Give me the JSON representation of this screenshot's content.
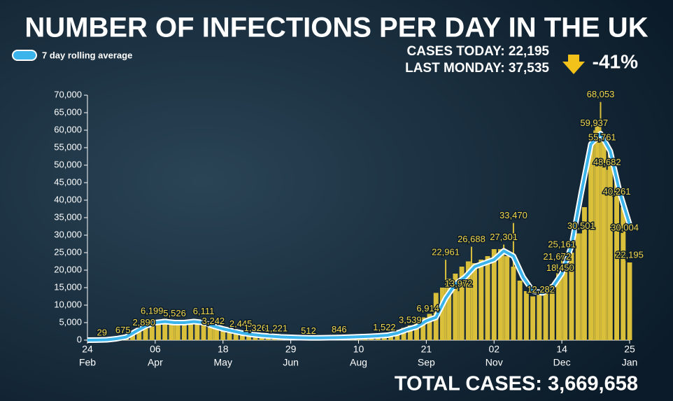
{
  "chart_data": {
    "type": "bar-line",
    "title": "NUMBER OF INFECTIONS PER DAY IN THE UK",
    "cases_today": "CASES TODAY: 22,195",
    "last_monday": "LAST MONDAY: 37,535",
    "change": "-41%",
    "total_cases": "TOTAL CASES: 3,669,658",
    "xlim": [
      0,
      336
    ],
    "xticks": [
      {
        "value": 0,
        "label": "24"
      },
      {
        "value": 42,
        "label": "06"
      },
      {
        "value": 84,
        "label": "18"
      },
      {
        "value": 126,
        "label": "29"
      },
      {
        "value": 168,
        "label": "10"
      },
      {
        "value": 210,
        "label": "21"
      },
      {
        "value": 252,
        "label": "02"
      },
      {
        "value": 294,
        "label": "14"
      },
      {
        "value": 336,
        "label": "25"
      }
    ],
    "xtick_months": [
      "Feb",
      "Apr",
      "May",
      "Jun",
      "Aug",
      "Sep",
      "Nov",
      "Dec",
      "Jan"
    ],
    "ylim": [
      0,
      70000
    ],
    "yticks": [
      0,
      {
        "value": 5000,
        "label": "5,000"
      },
      {
        "value": 10000,
        "label": "10,000"
      },
      {
        "value": 15000,
        "label": "15,000"
      },
      {
        "value": 20000,
        "label": "20,000"
      },
      {
        "value": 25000,
        "label": "25,000"
      },
      {
        "value": 30000,
        "label": "30,000"
      },
      {
        "value": 35000,
        "label": "35,000"
      },
      {
        "value": 40000,
        "label": "40,000"
      },
      {
        "value": 45000,
        "label": "45,000"
      },
      {
        "value": 50000,
        "label": "50,000"
      },
      {
        "value": 55000,
        "label": "55,000"
      },
      {
        "value": 60000,
        "label": "60,000"
      },
      {
        "value": 65000,
        "label": "65,000"
      },
      {
        "value": 70000,
        "label": "70,000"
      }
    ],
    "bars": {
      "color": "#d9bf3a",
      "x": [
        0,
        4,
        8,
        12,
        16,
        20,
        24,
        28,
        32,
        36,
        40,
        44,
        48,
        52,
        56,
        60,
        64,
        68,
        72,
        76,
        80,
        84,
        88,
        92,
        96,
        100,
        104,
        108,
        112,
        116,
        120,
        124,
        128,
        132,
        136,
        140,
        144,
        148,
        152,
        156,
        160,
        164,
        168,
        172,
        176,
        180,
        184,
        188,
        192,
        196,
        200,
        204,
        208,
        212,
        216,
        220,
        224,
        228,
        232,
        236,
        240,
        244,
        248,
        252,
        256,
        260,
        264,
        268,
        272,
        276,
        280,
        284,
        288,
        292,
        296,
        300,
        304,
        308,
        312,
        316,
        320,
        324,
        328,
        332,
        336
      ],
      "values": [
        0,
        10,
        30,
        90,
        250,
        600,
        900,
        2000,
        2900,
        4300,
        5200,
        4800,
        6100,
        5500,
        4900,
        5300,
        4800,
        5600,
        5100,
        4300,
        3300,
        3200,
        2700,
        2600,
        2100,
        1700,
        1400,
        1300,
        1200,
        1100,
        900,
        800,
        700,
        550,
        650,
        600,
        700,
        650,
        760,
        800,
        850,
        900,
        1000,
        1100,
        1200,
        1300,
        1500,
        1900,
        2900,
        3500,
        4200,
        5000,
        6500,
        7500,
        13500,
        15000,
        17500,
        19000,
        21000,
        22500,
        22000,
        23000,
        24000,
        26000,
        26000,
        24000,
        21000,
        17000,
        14000,
        12500,
        13000,
        15000,
        16000,
        18500,
        21000,
        25000,
        30500,
        38000,
        56000,
        62000,
        58000,
        54000,
        46000,
        38000,
        22195
      ]
    },
    "series": [
      {
        "name": "7 day rolling average",
        "color": "#3ab4ea",
        "x": [
          0,
          6,
          12,
          18,
          24,
          30,
          36,
          42,
          48,
          54,
          60,
          66,
          72,
          78,
          84,
          90,
          96,
          102,
          108,
          114,
          120,
          126,
          132,
          138,
          144,
          150,
          156,
          162,
          168,
          174,
          180,
          186,
          192,
          198,
          204,
          210,
          216,
          222,
          228,
          234,
          240,
          246,
          252,
          258,
          264,
          270,
          276,
          282,
          288,
          294,
          300,
          306,
          312,
          318,
          324,
          330,
          336
        ],
        "values": [
          0,
          20,
          100,
          400,
          900,
          2500,
          4000,
          5000,
          5300,
          5000,
          5000,
          5300,
          5000,
          4000,
          3200,
          2600,
          2000,
          1600,
          1300,
          1100,
          900,
          800,
          700,
          650,
          650,
          700,
          750,
          850,
          950,
          1050,
          1200,
          1400,
          2000,
          3000,
          3800,
          5500,
          6500,
          12000,
          16000,
          18000,
          21000,
          22000,
          23000,
          25500,
          24000,
          18000,
          14000,
          13500,
          15000,
          19000,
          27000,
          42000,
          56000,
          59000,
          54000,
          42000,
          33000
        ]
      }
    ],
    "labeled_points": {
      "x": [
        9,
        22,
        35,
        40,
        54,
        72,
        78,
        95,
        104,
        117,
        137,
        156,
        184,
        200,
        211,
        222,
        230,
        238,
        264,
        258,
        281,
        291,
        293,
        294,
        306,
        318,
        314,
        319,
        322,
        328,
        333,
        336
      ],
      "values": [
        29,
        675,
        2890,
        6199,
        5526,
        6111,
        3242,
        2445,
        1326,
        1221,
        512,
        846,
        1522,
        3539,
        6914,
        22961,
        13972,
        26688,
        33470,
        27301,
        12282,
        21672,
        18450,
        25161,
        30501,
        68053,
        59937,
        55761,
        48682,
        40261,
        30004,
        22195
      ],
      "value_labels": [
        "29",
        "675",
        "2,890",
        "6,199",
        "5,526",
        "6,111",
        "3,242",
        "2,445",
        "1,326",
        "1,221",
        "512",
        "846",
        "1,522",
        "3,539",
        "6,914",
        "22,961",
        "13,972",
        "26,688",
        "33,470",
        "27,301",
        "12,282",
        "21,672",
        "18,450",
        "25,161",
        "30,501",
        "68,053",
        "59,937",
        "55,761",
        "48,682",
        "40,261",
        "30,004",
        "22,195"
      ]
    }
  }
}
